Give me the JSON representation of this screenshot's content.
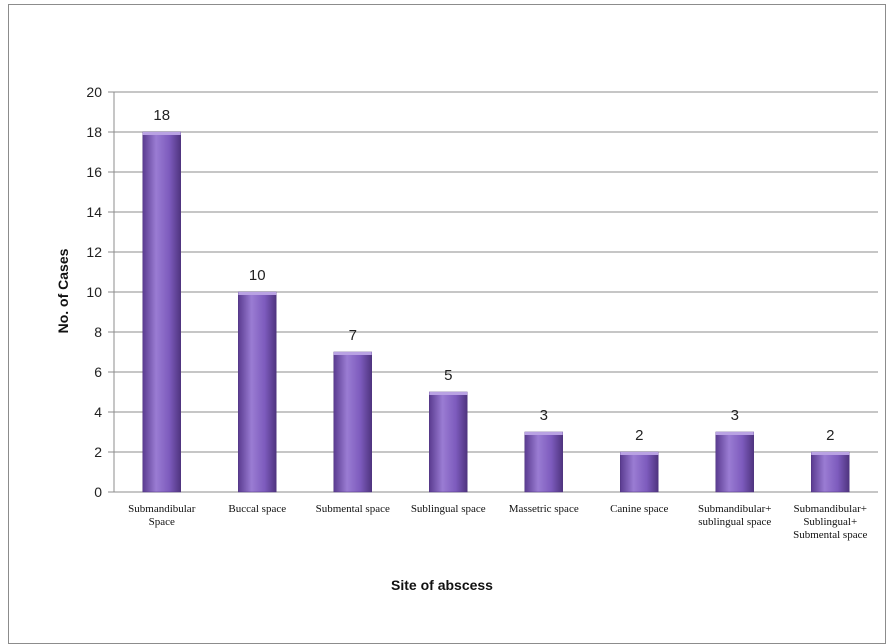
{
  "chart_data": {
    "type": "bar",
    "categories": [
      [
        "Submandibular",
        "Space"
      ],
      [
        "Buccal space"
      ],
      [
        "Submental space"
      ],
      [
        "Sublingual space"
      ],
      [
        "Massetric space"
      ],
      [
        "Canine space"
      ],
      [
        "Submandibular+",
        "sublingual space"
      ],
      [
        "Submandibular+",
        "Sublingual+",
        "Submental space"
      ]
    ],
    "values": [
      18,
      10,
      7,
      5,
      3,
      2,
      3,
      2
    ],
    "data_labels": [
      "18",
      "10",
      "7",
      "5",
      "3",
      "2",
      "3",
      "2"
    ],
    "xlabel": "Site of abscess",
    "ylabel": "No. of Cases",
    "ylim": [
      0,
      20
    ],
    "yticks": [
      0,
      2,
      4,
      6,
      8,
      10,
      12,
      14,
      16,
      18,
      20
    ],
    "grid": true,
    "legend": "none",
    "colors": {
      "bar_light": "#9a7cd3",
      "bar_mid": "#7b58b8",
      "bar_dark": "#4f347f",
      "grid": "#8c8c8c"
    }
  }
}
